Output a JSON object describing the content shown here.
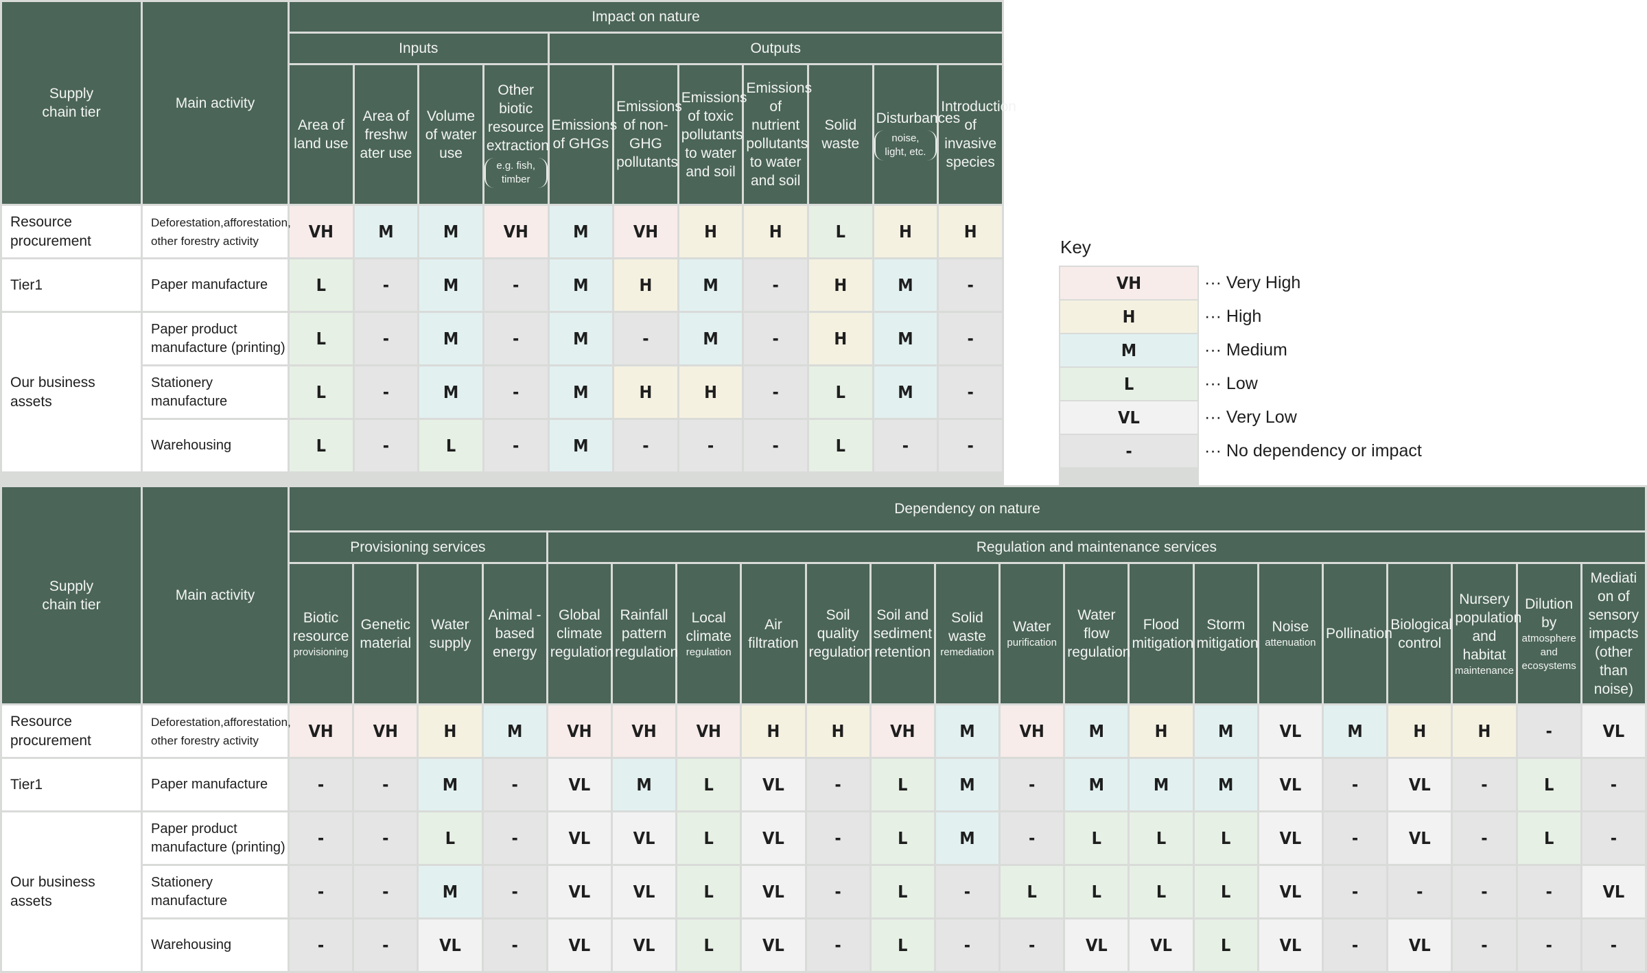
{
  "impact_table": {
    "title": "Impact on nature",
    "col_tier": "Supply chain tier",
    "col_activity": "Main activity",
    "groups": [
      {
        "label": "Inputs",
        "span": 4
      },
      {
        "label": "Outputs",
        "span": 7
      }
    ],
    "columns": [
      {
        "label": "Area of land use"
      },
      {
        "label": "Area of freshw ater use"
      },
      {
        "label": "Volume of water use"
      },
      {
        "label": "Other biotic resource extraction",
        "note": "(e.g. fish, timber)"
      },
      {
        "label": "Emissions of GHGs"
      },
      {
        "label": "Emissions of non-GHG pollutants"
      },
      {
        "label": "Emissions of toxic pollutants to water and soil"
      },
      {
        "label": "Emissions of nutrient pollutants to water and soil"
      },
      {
        "label": "Solid waste"
      },
      {
        "label": "Disturbances",
        "note": "(noise, light, etc.)"
      },
      {
        "label": "Introduction of invasive species"
      }
    ],
    "rows": [
      {
        "tier": "Resource procurement",
        "activity": "Deforestation,afforestation, other forestry activity",
        "values": [
          "VH",
          "M",
          "M",
          "VH",
          "M",
          "VH",
          "H",
          "H",
          "L",
          "H",
          "H"
        ]
      },
      {
        "tier": "Tier1",
        "activity": "Paper manufacture",
        "values": [
          "L",
          "-",
          "M",
          "-",
          "M",
          "H",
          "M",
          "-",
          "H",
          "M",
          "-"
        ]
      },
      {
        "tier": "Our business assets",
        "activity": "Paper product manufacture (printing)",
        "values": [
          "L",
          "-",
          "M",
          "-",
          "M",
          "-",
          "M",
          "-",
          "H",
          "M",
          "-"
        ]
      },
      {
        "tier": "",
        "activity": "Stationery manufacture",
        "values": [
          "L",
          "-",
          "M",
          "-",
          "M",
          "H",
          "H",
          "-",
          "L",
          "M",
          "-"
        ]
      },
      {
        "tier": "",
        "activity": "Warehousing",
        "values": [
          "L",
          "-",
          "L",
          "-",
          "M",
          "-",
          "-",
          "-",
          "L",
          "-",
          "-"
        ]
      }
    ]
  },
  "dependency_table": {
    "title": "Dependency on nature",
    "col_tier": "Supply chain tier",
    "col_activity": "Main activity",
    "groups": [
      {
        "label": "Provisioning services",
        "span": 4
      },
      {
        "label": "Regulation and maintenance services",
        "span": 17
      }
    ],
    "columns": [
      {
        "label": "Biotic resource",
        "note": "provisioning"
      },
      {
        "label": "Genetic material"
      },
      {
        "label": "Water supply"
      },
      {
        "label": "Animal -based energy"
      },
      {
        "label": "Global climate regulation"
      },
      {
        "label": "Rainfall pattern regulation"
      },
      {
        "label": "Local climate",
        "note": "regulation"
      },
      {
        "label": "Air filtration"
      },
      {
        "label": "Soil quality regulation"
      },
      {
        "label": "Soil and sediment retention"
      },
      {
        "label": "Solid waste",
        "note": "remediation"
      },
      {
        "label": "Water",
        "note": "purification"
      },
      {
        "label": "Water flow regulation"
      },
      {
        "label": "Flood mitigation"
      },
      {
        "label": "Storm mitigation"
      },
      {
        "label": "Noise",
        "note": "attenuation"
      },
      {
        "label": "Pollination"
      },
      {
        "label": "Biological control"
      },
      {
        "label": "Nursery population and habitat",
        "note": "maintenance"
      },
      {
        "label": "Dilution by",
        "note": "atmosphere and ecosystems"
      },
      {
        "label": "Mediati on of sensory impacts (other than noise)"
      }
    ],
    "rows": [
      {
        "tier": "Resource procurement",
        "activity": "Deforestation,afforestation, other forestry activity",
        "values": [
          "VH",
          "VH",
          "H",
          "M",
          "VH",
          "VH",
          "VH",
          "H",
          "H",
          "VH",
          "M",
          "VH",
          "M",
          "H",
          "M",
          "VL",
          "M",
          "H",
          "H",
          "-",
          "VL"
        ]
      },
      {
        "tier": "Tier1",
        "activity": "Paper manufacture",
        "values": [
          "-",
          "-",
          "M",
          "-",
          "VL",
          "M",
          "L",
          "VL",
          "-",
          "L",
          "M",
          "-",
          "M",
          "M",
          "M",
          "VL",
          "-",
          "VL",
          "-",
          "L",
          "-"
        ]
      },
      {
        "tier": "Our business assets",
        "activity": "Paper product manufacture (printing)",
        "values": [
          "-",
          "-",
          "L",
          "-",
          "VL",
          "VL",
          "L",
          "VL",
          "-",
          "L",
          "M",
          "-",
          "L",
          "L",
          "L",
          "VL",
          "-",
          "VL",
          "-",
          "L",
          "-"
        ]
      },
      {
        "tier": "",
        "activity": "Stationery manufacture",
        "values": [
          "-",
          "-",
          "M",
          "-",
          "VL",
          "VL",
          "L",
          "VL",
          "-",
          "L",
          "-",
          "L",
          "L",
          "L",
          "L",
          "VL",
          "-",
          "-",
          "-",
          "-",
          "VL"
        ]
      },
      {
        "tier": "",
        "activity": "Warehousing",
        "values": [
          "-",
          "-",
          "VL",
          "-",
          "VL",
          "VL",
          "L",
          "VL",
          "-",
          "L",
          "-",
          "-",
          "VL",
          "VL",
          "L",
          "VL",
          "-",
          "VL",
          "-",
          "-",
          "-"
        ]
      }
    ]
  },
  "key": {
    "title": "Key",
    "items": [
      {
        "code": "VH",
        "label": "··· Very High",
        "color": "#f7ecea"
      },
      {
        "code": "H",
        "label": "··· High",
        "color": "#f5f1e1"
      },
      {
        "code": "M",
        "label": "··· Medium",
        "color": "#e2f0f0"
      },
      {
        "code": "L",
        "label": "··· Low",
        "color": "#e6f0e4"
      },
      {
        "code": "VL",
        "label": "··· Very Low",
        "color": "#f2f2f2"
      },
      {
        "code": "-",
        "label": "··· No dependency or impact",
        "color": "#e5e5e5"
      }
    ]
  },
  "colors": {
    "header_bg": "#4b6558",
    "header_text": "#f2f4f2",
    "grid_line": "#d9dbd9"
  }
}
